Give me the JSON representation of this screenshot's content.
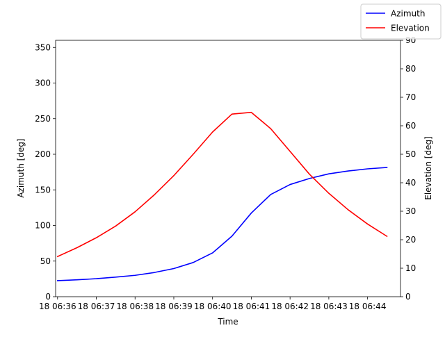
{
  "chart_data": {
    "type": "line",
    "xlabel": "Time",
    "ylabel_left": "Azimuth [deg]",
    "ylabel_right": "Elevation [deg]",
    "x_ticks": [
      "18 06:36",
      "18 06:37",
      "18 06:38",
      "18 06:39",
      "18 06:40",
      "18 06:41",
      "18 06:42",
      "18 06:43",
      "18 06:44"
    ],
    "xlim": [
      -0.05,
      8.85
    ],
    "ylim_left": [
      0,
      360
    ],
    "ylim_right": [
      0,
      90
    ],
    "yticks_left": [
      0,
      50,
      100,
      150,
      200,
      250,
      300,
      350
    ],
    "yticks_right": [
      0,
      10,
      20,
      30,
      40,
      50,
      60,
      70,
      80,
      90
    ],
    "grid": false,
    "legend_placement": "top-right",
    "x": [
      0,
      0.5,
      1,
      1.5,
      2,
      2.5,
      3,
      3.5,
      4,
      4.5,
      5,
      5.5,
      6,
      6.5,
      7,
      7.5,
      8,
      8.5
    ],
    "series": [
      {
        "name": "Azimuth",
        "axis": "left",
        "color": "#0000ff",
        "values": [
          22.5,
          23.7,
          25.3,
          27.5,
          30.0,
          34.0,
          39.5,
          48.0,
          61.5,
          85.0,
          117.5,
          143.5,
          157.5,
          166.0,
          172.5,
          176.5,
          179.5,
          181.5
        ]
      },
      {
        "name": "Elevation",
        "axis": "right",
        "color": "#ff0000",
        "values": [
          14.1,
          17.2,
          20.7,
          24.8,
          29.8,
          35.8,
          42.5,
          50.0,
          57.8,
          64.1,
          64.7,
          59.0,
          51.0,
          43.0,
          36.3,
          30.5,
          25.5,
          21.2
        ]
      }
    ]
  }
}
